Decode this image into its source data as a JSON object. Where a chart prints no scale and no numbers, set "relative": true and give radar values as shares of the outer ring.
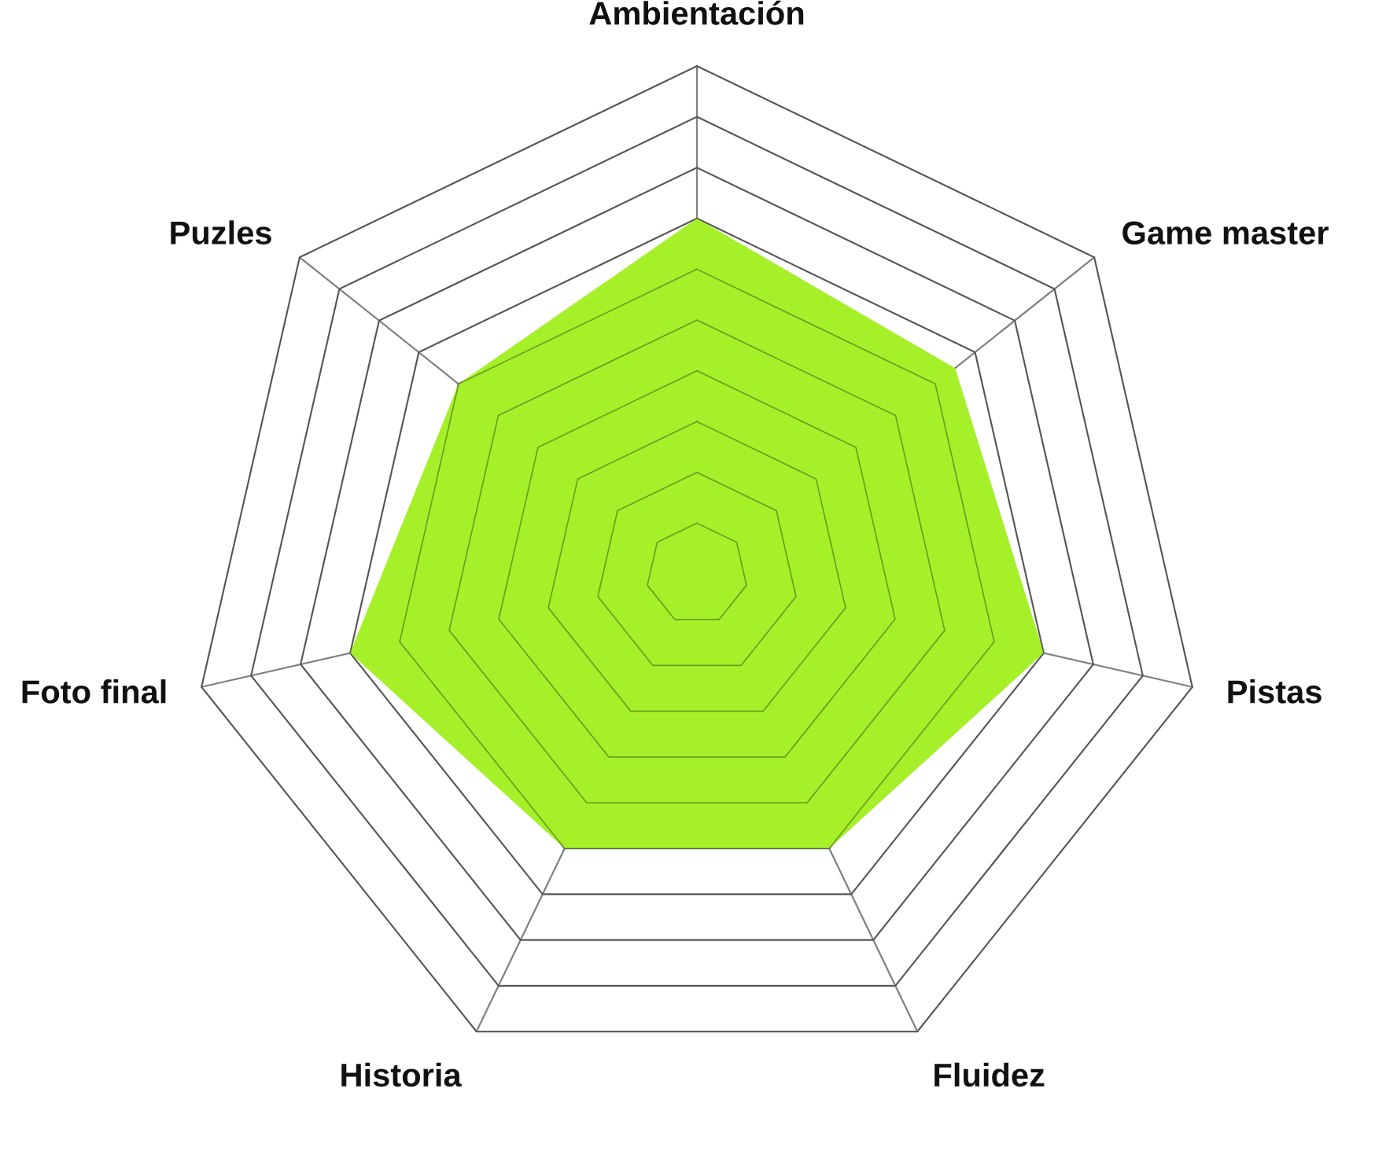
{
  "chart_data": {
    "type": "radar",
    "relative": true,
    "grid": true,
    "categories": [
      "Ambientación",
      "Game master",
      "Pistas",
      "Fluidez",
      "Historia",
      "Foto final",
      "Puzles"
    ],
    "series": [
      {
        "color": "#a6f02a",
        "values": [
          0.7,
          0.65,
          0.7,
          0.6,
          0.6,
          0.7,
          0.6
        ]
      }
    ]
  }
}
